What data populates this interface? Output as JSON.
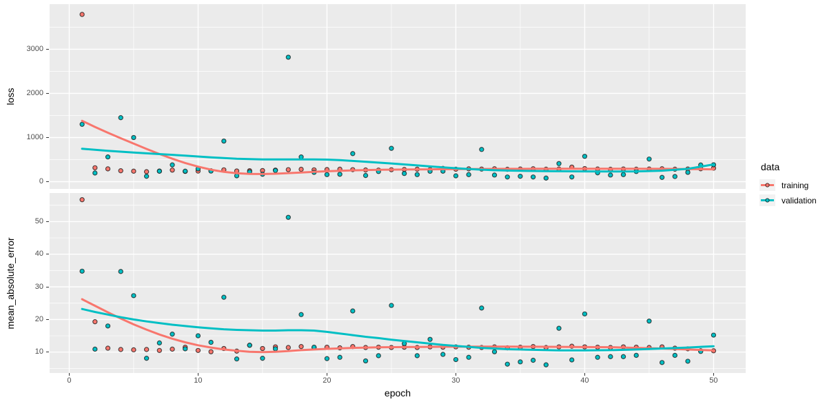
{
  "chart_data": {
    "type": "scatter",
    "description": "Keras training history: faceted scatter plot with loess smoothers, ggplot2 gray theme",
    "xlabel": "epoch",
    "x_ticks": [
      0,
      10,
      20,
      30,
      40,
      50
    ],
    "x_minor_ticks": [
      5,
      15,
      25,
      35,
      45
    ],
    "xlim": [
      -1.52,
      52.49
    ],
    "grid": "on",
    "panel_bg": "#EBEBEB",
    "grid_color": "#FFFFFF",
    "tick_label_color": "#4D4D4D",
    "point_stroke": "#1A1A1A",
    "legend": {
      "title": "data",
      "position": "right",
      "entries": [
        {
          "label": "training",
          "color": "#F8766D"
        },
        {
          "label": "validation",
          "color": "#00BFC4"
        }
      ]
    },
    "x": [
      1,
      2,
      3,
      4,
      5,
      6,
      7,
      8,
      9,
      10,
      11,
      12,
      13,
      14,
      15,
      16,
      17,
      18,
      19,
      20,
      21,
      22,
      23,
      24,
      25,
      26,
      27,
      28,
      29,
      30,
      31,
      32,
      33,
      34,
      35,
      36,
      37,
      38,
      39,
      40,
      41,
      42,
      43,
      44,
      45,
      46,
      47,
      48,
      49,
      50
    ],
    "facets": [
      {
        "name": "loss",
        "ylabel": "loss",
        "y_ticks": [
          0,
          1000,
          2000,
          3000
        ],
        "y_minor_ticks": [
          500,
          1500,
          2500,
          3500
        ],
        "ylim": [
          -164,
          4023
        ],
        "series": [
          {
            "name": "training",
            "color": "#F8766D",
            "values": [
              3790,
              315,
              290,
              247,
              237,
              226,
              240,
              262,
              232,
              240,
              246,
              268,
              242,
              248,
              252,
              262,
              272,
              280,
              268,
              275,
              282,
              272,
              265,
              262,
              270,
              276,
              282,
              272,
              300,
              282,
              290,
              285,
              292,
              280,
              286,
              292,
              282,
              286,
              330,
              296,
              286,
              280,
              287,
              282,
              286,
              292,
              282,
              286,
              292,
              305
            ],
            "smooth": [
              [
                1,
                1380
              ],
              [
                2,
                1240
              ],
              [
                3,
                1110
              ],
              [
                4,
                985
              ],
              [
                5,
                862
              ],
              [
                6,
                742
              ],
              [
                7,
                627
              ],
              [
                8,
                520
              ],
              [
                9,
                423
              ],
              [
                10,
                340
              ],
              [
                11,
                272
              ],
              [
                12,
                222
              ],
              [
                13,
                190
              ],
              [
                14,
                175
              ],
              [
                15,
                173
              ],
              [
                16,
                180
              ],
              [
                17,
                193
              ],
              [
                18,
                208
              ],
              [
                19,
                222
              ],
              [
                20,
                236
              ],
              [
                22,
                256
              ],
              [
                24,
                268
              ],
              [
                26,
                275
              ],
              [
                28,
                280
              ],
              [
                30,
                284
              ],
              [
                32,
                288
              ],
              [
                34,
                291
              ],
              [
                36,
                292
              ],
              [
                38,
                293
              ],
              [
                40,
                294
              ],
              [
                42,
                293
              ],
              [
                44,
                292
              ],
              [
                46,
                291
              ],
              [
                48,
                286
              ],
              [
                50,
                280
              ]
            ]
          },
          {
            "name": "validation",
            "color": "#00BFC4",
            "values": [
              1300,
              196,
              560,
              1450,
              1000,
              122,
              237,
              380,
              237,
              290,
              240,
              920,
              133,
              222,
              168,
              253,
              2820,
              560,
              211,
              160,
              168,
              636,
              140,
              230,
              755,
              185,
              160,
              235,
              237,
              132,
              159,
              730,
              150,
              106,
              122,
              106,
              81,
              410,
              106,
              574,
              200,
              150,
              160,
              230,
              512,
              97,
              117,
              211,
              378,
              383
            ],
            "smooth": [
              [
                1,
                745
              ],
              [
                3,
                700
              ],
              [
                5,
                660
              ],
              [
                7,
                625
              ],
              [
                9,
                590
              ],
              [
                11,
                552
              ],
              [
                13,
                520
              ],
              [
                15,
                505
              ],
              [
                17,
                503
              ],
              [
                19,
                505
              ],
              [
                20,
                500
              ],
              [
                21,
                488
              ],
              [
                22,
                470
              ],
              [
                23,
                452
              ],
              [
                24,
                432
              ],
              [
                25,
                412
              ],
              [
                26,
                390
              ],
              [
                27,
                368
              ],
              [
                28,
                345
              ],
              [
                29,
                325
              ],
              [
                30,
                305
              ],
              [
                31,
                288
              ],
              [
                32,
                272
              ],
              [
                33,
                260
              ],
              [
                34,
                252
              ],
              [
                35,
                246
              ],
              [
                36,
                242
              ],
              [
                37,
                238
              ],
              [
                38,
                236
              ],
              [
                40,
                233
              ],
              [
                42,
                231
              ],
              [
                44,
                233
              ],
              [
                46,
                248
              ],
              [
                48,
                290
              ],
              [
                50,
                390
              ]
            ]
          }
        ]
      },
      {
        "name": "mean_absolute_error",
        "ylabel": "mean_absolute_error",
        "y_ticks": [
          10,
          20,
          30,
          40,
          50
        ],
        "y_minor_ticks": [
          5,
          15,
          25,
          35,
          45,
          55
        ],
        "ylim": [
          3.6,
          58.75
        ],
        "series": [
          {
            "name": "training",
            "color": "#F8766D",
            "values": [
              56.7,
              19.3,
              11.2,
              10.8,
              10.7,
              10.8,
              10.5,
              10.9,
              11.5,
              10.5,
              10.1,
              11.1,
              10.3,
              12.1,
              11.1,
              11.6,
              11.4,
              11.7,
              11.4,
              11.5,
              11.3,
              11.7,
              11.4,
              11.5,
              11.4,
              11.5,
              11.4,
              11.6,
              11.5,
              11.6,
              11.5,
              11.4,
              11.6,
              11.3,
              11.5,
              11.7,
              11.4,
              11.6,
              11.8,
              11.6,
              11.5,
              11.4,
              11.6,
              11.5,
              11.4,
              11.6,
              11.2,
              11.0,
              10.4,
              10.4
            ],
            "smooth": [
              [
                1,
                26.2
              ],
              [
                2,
                24.2
              ],
              [
                3,
                22.2
              ],
              [
                4,
                20.3
              ],
              [
                5,
                18.5
              ],
              [
                6,
                16.9
              ],
              [
                7,
                15.4
              ],
              [
                8,
                14.1
              ],
              [
                9,
                13.0
              ],
              [
                10,
                12.1
              ],
              [
                11,
                11.4
              ],
              [
                12,
                10.8
              ],
              [
                13,
                10.4
              ],
              [
                14,
                10.1
              ],
              [
                15,
                10.0
              ],
              [
                16,
                10.1
              ],
              [
                17,
                10.3
              ],
              [
                18,
                10.6
              ],
              [
                19,
                10.8
              ],
              [
                20,
                11.0
              ],
              [
                22,
                11.3
              ],
              [
                24,
                11.45
              ],
              [
                26,
                11.55
              ],
              [
                28,
                11.6
              ],
              [
                30,
                11.65
              ],
              [
                32,
                11.7
              ],
              [
                34,
                11.7
              ],
              [
                36,
                11.65
              ],
              [
                38,
                11.6
              ],
              [
                40,
                11.55
              ],
              [
                42,
                11.5
              ],
              [
                44,
                11.3
              ],
              [
                46,
                11.1
              ],
              [
                48,
                10.8
              ],
              [
                50,
                10.5
              ]
            ]
          },
          {
            "name": "validation",
            "color": "#00BFC4",
            "values": [
              34.8,
              10.9,
              18.0,
              34.7,
              27.3,
              8.1,
              12.8,
              15.5,
              11.0,
              15.0,
              13.0,
              26.8,
              7.9,
              12.1,
              8.1,
              11.0,
              51.3,
              21.5,
              11.5,
              8.0,
              8.4,
              22.6,
              7.3,
              8.9,
              24.3,
              12.6,
              8.9,
              13.9,
              9.3,
              7.7,
              8.4,
              23.5,
              10.1,
              6.3,
              7.0,
              7.5,
              6.1,
              17.3,
              7.6,
              21.7,
              8.4,
              8.6,
              8.6,
              9.0,
              19.5,
              6.8,
              9.0,
              7.2,
              10.2,
              15.2
            ],
            "smooth": [
              [
                1,
                23.2
              ],
              [
                2,
                22.3
              ],
              [
                3,
                21.5
              ],
              [
                4,
                20.7
              ],
              [
                5,
                20.0
              ],
              [
                6,
                19.4
              ],
              [
                7,
                18.9
              ],
              [
                8,
                18.4
              ],
              [
                9,
                18.0
              ],
              [
                10,
                17.6
              ],
              [
                11,
                17.3
              ],
              [
                12,
                17.0
              ],
              [
                13,
                16.8
              ],
              [
                14,
                16.7
              ],
              [
                15,
                16.6
              ],
              [
                16,
                16.6
              ],
              [
                17,
                16.7
              ],
              [
                18,
                16.7
              ],
              [
                19,
                16.6
              ],
              [
                20,
                16.2
              ],
              [
                21,
                15.7
              ],
              [
                22,
                15.2
              ],
              [
                23,
                14.7
              ],
              [
                24,
                14.3
              ],
              [
                25,
                13.8
              ],
              [
                26,
                13.4
              ],
              [
                27,
                13.0
              ],
              [
                28,
                12.6
              ],
              [
                29,
                12.2
              ],
              [
                30,
                11.9
              ],
              [
                31,
                11.6
              ],
              [
                32,
                11.3
              ],
              [
                33,
                11.1
              ],
              [
                34,
                10.9
              ],
              [
                35,
                10.8
              ],
              [
                36,
                10.7
              ],
              [
                38,
                10.5
              ],
              [
                40,
                10.5
              ],
              [
                42,
                10.6
              ],
              [
                44,
                10.8
              ],
              [
                46,
                11.1
              ],
              [
                48,
                11.4
              ],
              [
                50,
                11.8
              ]
            ]
          }
        ]
      }
    ]
  }
}
